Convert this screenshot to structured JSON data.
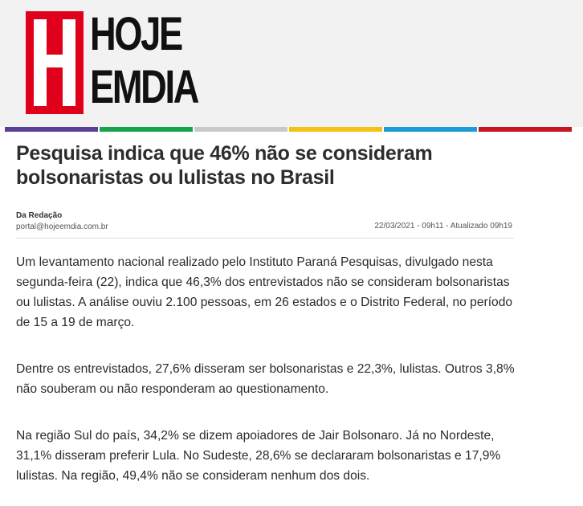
{
  "logo": {
    "line1": "HOJE",
    "line2": "EMDIA",
    "accent": "#e0001b"
  },
  "category_colors": [
    "#5b3f96",
    "#19a34a",
    "#c9c9c9",
    "#f2c314",
    "#1c9bd6",
    "#c4161c"
  ],
  "article": {
    "title": "Pesquisa indica que 46% não se consideram bolsonaristas ou lulistas no Brasil",
    "author": "Da Redação",
    "email": "portal@hojeemdia.com.br",
    "date": "22/03/2021 - 09h11 - Atualizado 09h19",
    "paragraphs": [
      "Um levantamento nacional realizado pelo Instituto Paraná Pesquisas, divulgado nesta segunda-feira (22), indica que 46,3% dos entrevistados não se consideram bolsonaristas ou lulistas. A análise ouviu 2.100 pessoas, em 26 estados e o Distrito Federal, no período de 15 a 19 de março.",
      "Dentre os entrevistados, 27,6% disseram ser bolsonaristas e 22,3%, lulistas. Outros 3,8% não souberam ou não responderam ao questionamento.",
      "Na região Sul do país, 34,2% se dizem apoiadores de Jair Bolsonaro. Já no Nordeste, 31,1% disseram preferir Lula. No Sudeste, 28,6% se declararam bolsonaristas e 17,9% lulistas. Na região, 49,4% não se consideram nenhum dos dois."
    ]
  }
}
